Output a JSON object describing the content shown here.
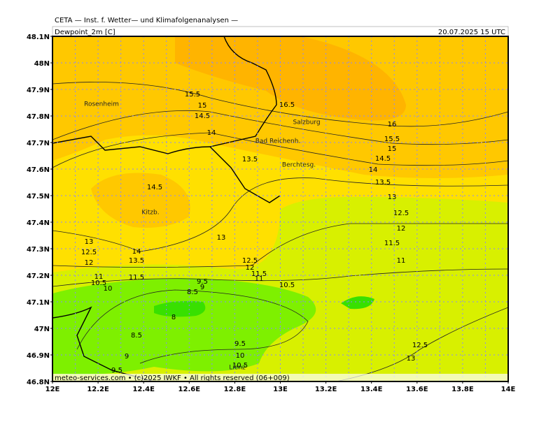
{
  "header": {
    "title": "CETA — Inst. f. Wetter— und Klimafolgenanalysen —",
    "field": "Dewpoint_2m [C]",
    "datetime": "20.07.2025 15 UTC"
  },
  "footer": "meteo-services.com • (c)2025 IWKF • All rights reserved (06+009)",
  "lat_labels": [
    "48.1N",
    "48N",
    "47.9N",
    "47.8N",
    "47.7N",
    "47.6N",
    "47.5N",
    "47.4N",
    "47.3N",
    "47.2N",
    "47.1N",
    "47N",
    "46.9N",
    "46.8N"
  ],
  "lon_labels": [
    "12E",
    "12.2E",
    "12.4E",
    "12.6E",
    "12.8E",
    "13E",
    "13.2E",
    "13.4E",
    "13.6E",
    "13.8E",
    "14E"
  ],
  "places": [
    "Rosenheim",
    "Salzburg",
    "Bad Reichenh.",
    "Berchtesg.",
    "Kitzb.",
    "Lienz"
  ],
  "contour_labels": [
    15.5,
    15,
    14.5,
    14,
    16.5,
    16,
    15.5,
    15,
    14.5,
    14,
    13.5,
    13.5,
    13,
    12.5,
    12,
    11.5,
    11,
    14.5,
    13,
    13,
    12.5,
    12,
    14,
    13.5,
    11,
    10.5,
    10,
    11.5,
    12.5,
    12,
    11.5,
    11,
    10.5,
    9.5,
    9,
    8.5,
    8,
    8.5,
    9,
    9.5,
    9.5,
    10,
    10.5,
    12.5,
    13
  ]
}
